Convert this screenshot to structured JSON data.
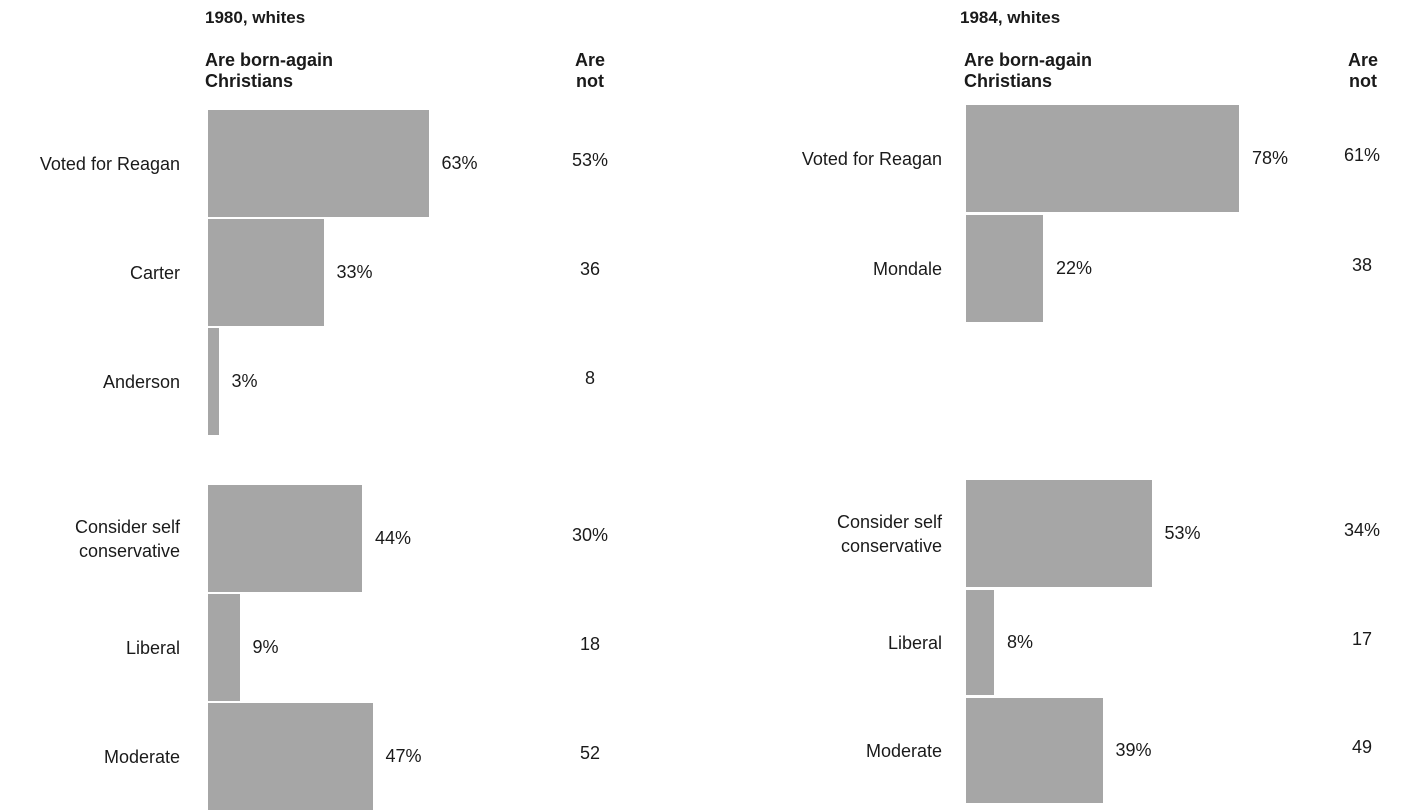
{
  "chart_data": [
    {
      "type": "bar",
      "title": "1980, whites",
      "series": [
        {
          "name": "Are born-again Christians",
          "values": [
            63,
            33,
            3,
            44,
            9,
            47
          ]
        },
        {
          "name": "Are not",
          "values": [
            53,
            36,
            8,
            30,
            18,
            52
          ]
        }
      ],
      "categories": [
        "Voted for Reagan",
        "Carter",
        "Anderson",
        "Consider self conservative",
        "Liberal",
        "Moderate"
      ],
      "born_again_labels": [
        "63%",
        "33%",
        "3%",
        "44%",
        "9%",
        "47%"
      ],
      "not_labels": [
        "53%",
        "36",
        "8",
        "30%",
        "18",
        "52"
      ]
    },
    {
      "type": "bar",
      "title": "1984, whites",
      "series": [
        {
          "name": "Are born-again Christians",
          "values": [
            78,
            22,
            53,
            8,
            39
          ]
        },
        {
          "name": "Are not",
          "values": [
            61,
            38,
            34,
            17,
            49
          ]
        }
      ],
      "categories": [
        "Voted for Reagan",
        "Mondale",
        "Consider self conservative",
        "Liberal",
        "Moderate"
      ],
      "born_again_labels": [
        "78%",
        "22%",
        "53%",
        "8%",
        "39%"
      ],
      "not_labels": [
        "61%",
        "38",
        "34%",
        "17",
        "49"
      ]
    }
  ],
  "headers": {
    "born_again": "Are born-again Christians",
    "not": "Are not"
  },
  "colors": {
    "bar": "#a6a6a6",
    "text": "#1a1a1a"
  }
}
